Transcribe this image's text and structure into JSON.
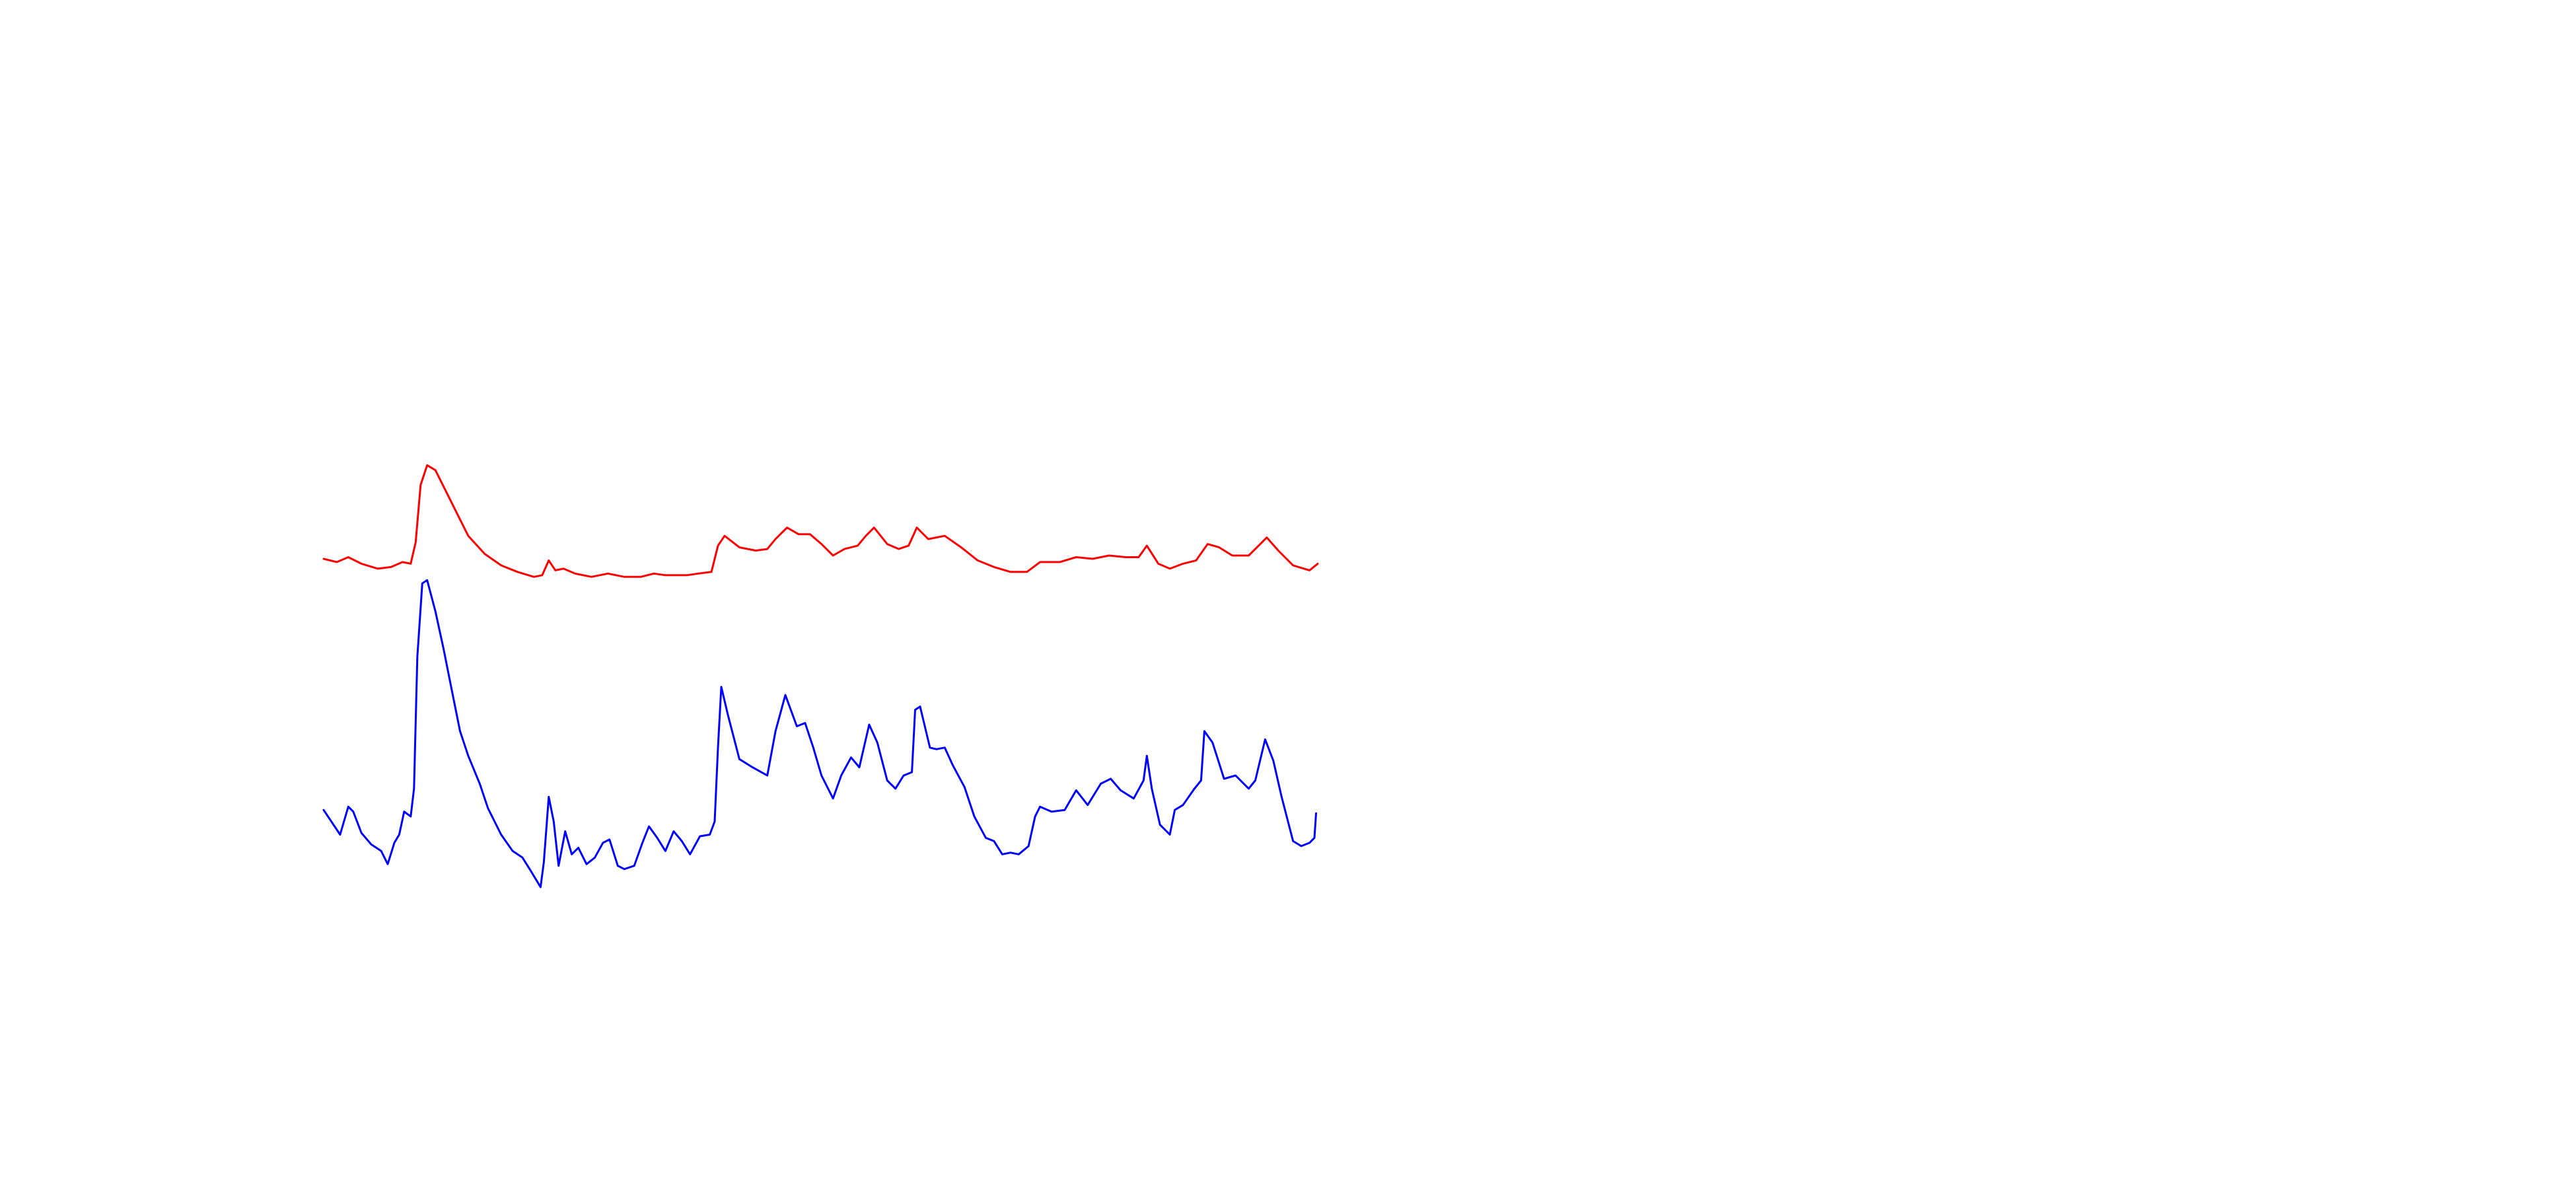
{
  "chart_data": {
    "type": "line",
    "xlim": [
      0,
      605
    ],
    "ylim": [
      0,
      270
    ],
    "series": [
      {
        "color": "#ff0000",
        "x": [
          0,
          8,
          15,
          23,
          33,
          41,
          48,
          53,
          56,
          59,
          63,
          68,
          73,
          81,
          88,
          98,
          108,
          118,
          128,
          133,
          137,
          141,
          146,
          153,
          163,
          173,
          183,
          193,
          201,
          208,
          213,
          221,
          228,
          236,
          240,
          244,
          253,
          263,
          270,
          275,
          282,
          289,
          296,
          303,
          310,
          317,
          325,
          330,
          335,
          343,
          350,
          356,
          361,
          368,
          378,
          388,
          398,
          408,
          418,
          428,
          436,
          448,
          458,
          468,
          478,
          488,
          496,
          501,
          508,
          515,
          523,
          531,
          538,
          545,
          553,
          563,
          568,
          574,
          581,
          590,
          600,
          605
        ],
        "values": [
          200,
          198,
          201,
          197,
          194,
          195,
          198,
          197,
          210,
          245,
          257,
          254,
          244,
          228,
          214,
          203,
          196,
          192,
          189,
          190,
          199,
          193,
          194,
          191,
          189,
          191,
          189,
          189,
          191,
          190,
          190,
          190,
          191,
          192,
          208,
          214,
          207,
          205,
          206,
          212,
          219,
          215,
          215,
          209,
          202,
          206,
          208,
          214,
          219,
          209,
          206,
          208,
          219,
          212,
          214,
          207,
          199,
          195,
          192,
          192,
          198,
          198,
          201,
          200,
          202,
          201,
          201,
          208,
          197,
          194,
          197,
          199,
          209,
          207,
          202,
          202,
          207,
          213,
          205,
          196,
          193,
          197
        ]
      },
      {
        "color": "#0000ff",
        "x": [
          0,
          6,
          10,
          15,
          18,
          23,
          29,
          35,
          39,
          43,
          46,
          49,
          53,
          55,
          57,
          60,
          63,
          68,
          73,
          78,
          83,
          88,
          95,
          100,
          108,
          115,
          121,
          126,
          132,
          134,
          137,
          140,
          143,
          147,
          151,
          155,
          160,
          165,
          170,
          174,
          179,
          183,
          189,
          194,
          198,
          203,
          208,
          213,
          218,
          223,
          229,
          235,
          238,
          240,
          242,
          246,
          253,
          261,
          270,
          275,
          281,
          288,
          293,
          298,
          303,
          310,
          315,
          321,
          326,
          332,
          337,
          343,
          348,
          353,
          358,
          360,
          363,
          369,
          373,
          378,
          383,
          390,
          396,
          403,
          408,
          413,
          418,
          423,
          429,
          433,
          436,
          443,
          451,
          458,
          465,
          473,
          479,
          485,
          493,
          499,
          501,
          504,
          509,
          515,
          518,
          523,
          530,
          534,
          536,
          541,
          548,
          555,
          563,
          567,
          573,
          578,
          583,
          590,
          595,
          600,
          603,
          604
        ],
        "values": [
          47,
          38,
          32,
          49,
          46,
          33,
          26,
          22,
          14,
          27,
          32,
          46,
          43,
          60,
          140,
          185,
          187,
          168,
          145,
          120,
          95,
          80,
          63,
          48,
          32,
          22,
          18,
          10,
          0,
          15,
          55,
          40,
          13,
          34,
          20,
          24,
          14,
          18,
          27,
          29,
          13,
          11,
          13,
          27,
          37,
          30,
          22,
          34,
          28,
          20,
          31,
          32,
          40,
          85,
          122,
          105,
          78,
          73,
          68,
          95,
          117,
          98,
          100,
          85,
          68,
          54,
          68,
          79,
          73,
          99,
          88,
          65,
          60,
          68,
          70,
          108,
          110,
          85,
          84,
          85,
          74,
          61,
          43,
          30,
          28,
          20,
          21,
          20,
          25,
          43,
          49,
          46,
          47,
          59,
          50,
          63,
          66,
          59,
          54,
          65,
          80,
          60,
          38,
          32,
          47,
          50,
          60,
          65,
          95,
          88,
          66,
          68,
          60,
          65,
          90,
          77,
          55,
          28,
          25,
          27,
          30,
          45
        ]
      }
    ]
  }
}
